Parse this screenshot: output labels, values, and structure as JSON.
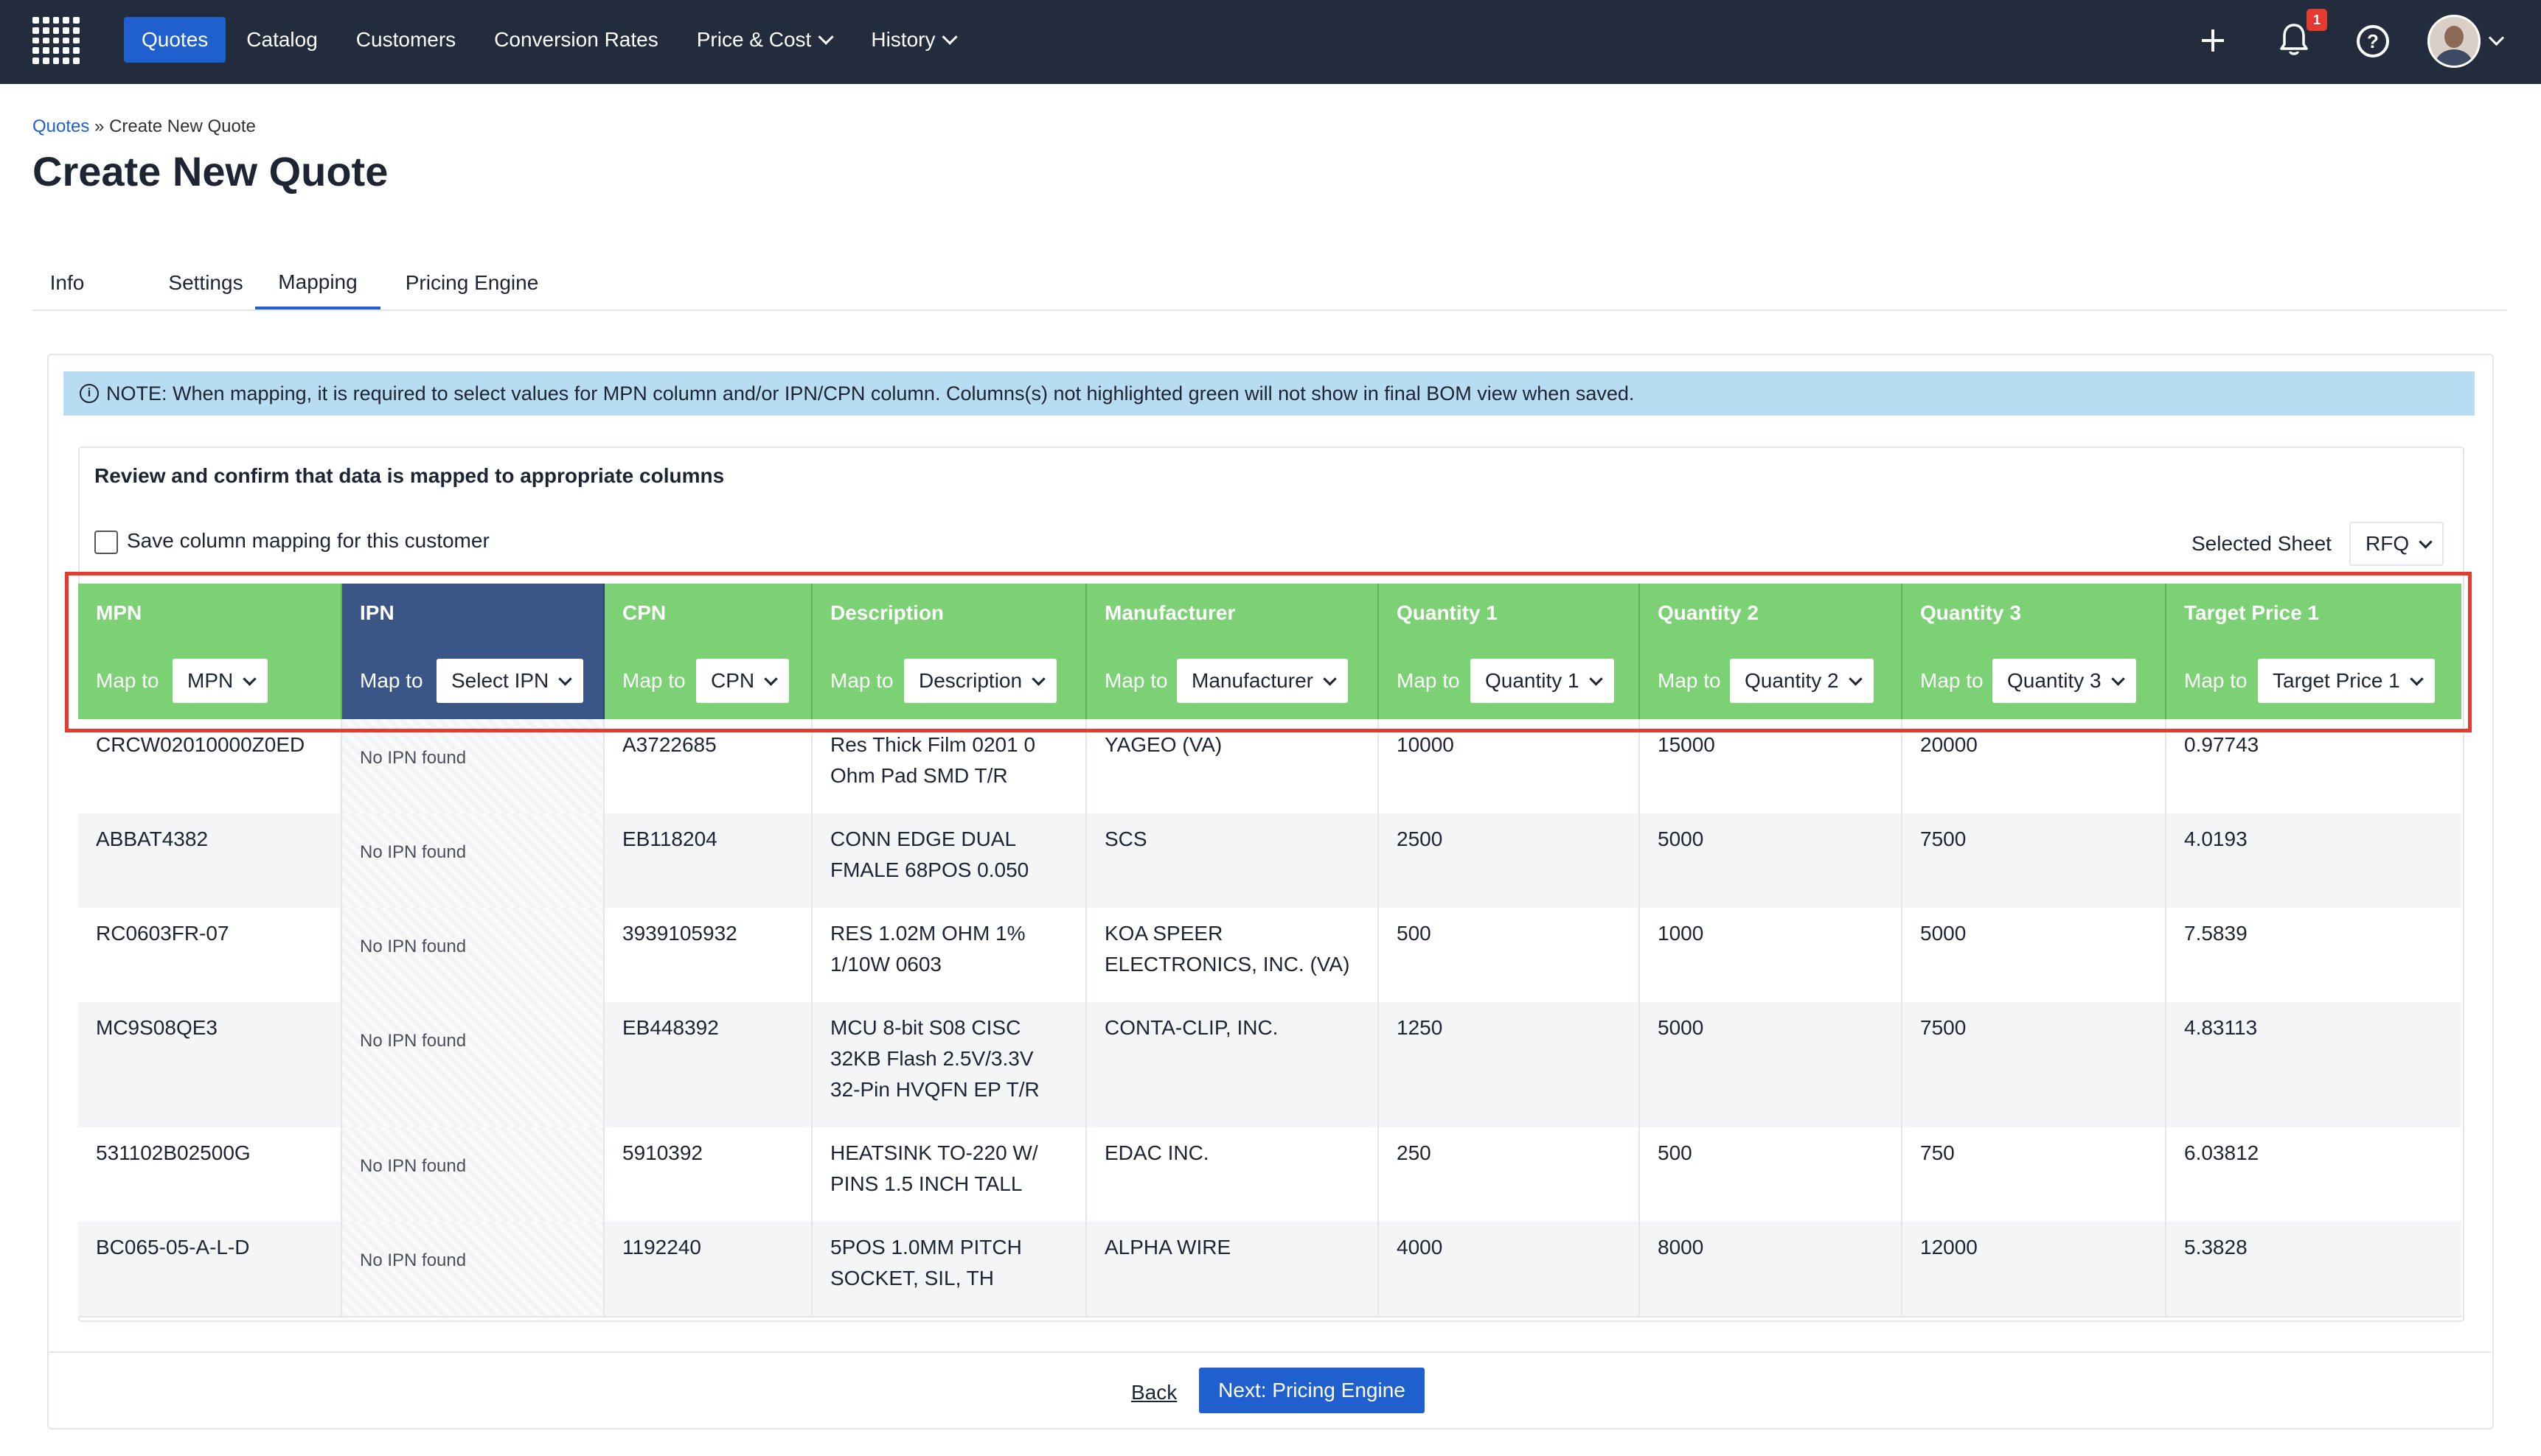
{
  "nav": {
    "items": [
      {
        "label": "Quotes",
        "active": true
      },
      {
        "label": "Catalog"
      },
      {
        "label": "Customers"
      },
      {
        "label": "Conversion Rates"
      },
      {
        "label": "Price & Cost",
        "dropdown": true
      },
      {
        "label": "History",
        "dropdown": true
      }
    ],
    "notification_count": "1",
    "help_glyph": "?"
  },
  "breadcrumb": {
    "root": "Quotes",
    "separator": " » ",
    "current": "Create New Quote"
  },
  "page_title": "Create New Quote",
  "tabs": [
    {
      "label": "Info"
    },
    {
      "label": "Settings"
    },
    {
      "label": "Mapping",
      "active": true
    },
    {
      "label": "Pricing Engine"
    }
  ],
  "note": {
    "glyph": "i",
    "text": "NOTE: When mapping, it is required to select values for MPN column and/or IPN/CPN column. Columns(s) not highlighted green will not show in final BOM view when saved."
  },
  "review_title": "Review and confirm that data is mapped to appropriate columns",
  "save_mapping_label": "Save column mapping for this customer",
  "selected_sheet": {
    "label": "Selected Sheet",
    "value": "RFQ"
  },
  "map_to_label": "Map to",
  "columns": [
    {
      "name": "MPN",
      "mapped": "MPN",
      "color": "#7bd174"
    },
    {
      "name": "IPN",
      "mapped": "Select IPN",
      "color": "#3a5687"
    },
    {
      "name": "CPN",
      "mapped": "CPN",
      "color": "#7bd174"
    },
    {
      "name": "Description",
      "mapped": "Description",
      "color": "#7bd174"
    },
    {
      "name": "Manufacturer",
      "mapped": "Manufacturer",
      "color": "#7bd174"
    },
    {
      "name": "Quantity 1",
      "mapped": "Quantity 1",
      "color": "#7bd174"
    },
    {
      "name": "Quantity 2",
      "mapped": "Quantity 2",
      "color": "#7bd174"
    },
    {
      "name": "Quantity 3",
      "mapped": "Quantity 3",
      "color": "#7bd174"
    },
    {
      "name": "Target Price 1",
      "mapped": "Target Price 1",
      "color": "#7bd174"
    }
  ],
  "rows": [
    {
      "mpn": "CRCW02010000Z0ED",
      "ipn": "No IPN found",
      "cpn": "A3722685",
      "description": "Res Thick Film 0201 0 Ohm Pad SMD T/R",
      "manufacturer": "YAGEO (VA)",
      "q1": "10000",
      "q2": "15000",
      "q3": "20000",
      "target_price": "0.97743"
    },
    {
      "mpn": "ABBAT4382",
      "ipn": "No IPN found",
      "cpn": "EB118204",
      "description": "CONN EDGE DUAL FMALE 68POS 0.050",
      "manufacturer": "SCS",
      "q1": "2500",
      "q2": "5000",
      "q3": "7500",
      "target_price": "4.0193"
    },
    {
      "mpn": "RC0603FR-07",
      "ipn": "No IPN found",
      "cpn": "3939105932",
      "description": "RES 1.02M OHM 1% 1/10W 0603",
      "manufacturer": "KOA SPEER ELECTRONICS, INC. (VA)",
      "q1": "500",
      "q2": "1000",
      "q3": "5000",
      "target_price": "7.5839"
    },
    {
      "mpn": "MC9S08QE3",
      "ipn": "No IPN found",
      "cpn": "EB448392",
      "description": "MCU 8-bit S08 CISC 32KB Flash 2.5V/3.3V 32-Pin HVQFN EP T/R",
      "manufacturer": "CONTA-CLIP, INC.",
      "q1": "1250",
      "q2": "5000",
      "q3": "7500",
      "target_price": "4.83113"
    },
    {
      "mpn": "531102B02500G",
      "ipn": "No IPN found",
      "cpn": "5910392",
      "description": "HEATSINK TO-220 W/ PINS 1.5 INCH TALL",
      "manufacturer": "EDAC INC.",
      "q1": "250",
      "q2": "500",
      "q3": "750",
      "target_price": "6.03812"
    },
    {
      "mpn": "BC065-05-A-L-D",
      "ipn": "No IPN found",
      "cpn": "1192240",
      "description": "5POS 1.0MM PITCH SOCKET, SIL, TH",
      "manufacturer": "ALPHA WIRE",
      "q1": "4000",
      "q2": "8000",
      "q3": "12000",
      "target_price": "5.3828"
    }
  ],
  "footer": {
    "back_label": "Back",
    "next_label": "Next: Pricing Engine"
  },
  "colors": {
    "topbar": "#232c3d",
    "accent": "#1f5fce",
    "mapped_green": "#7bd174",
    "unmapped_blue": "#3a5687",
    "highlight_red": "#e43a2f",
    "note_bg": "#b8dcf2"
  }
}
